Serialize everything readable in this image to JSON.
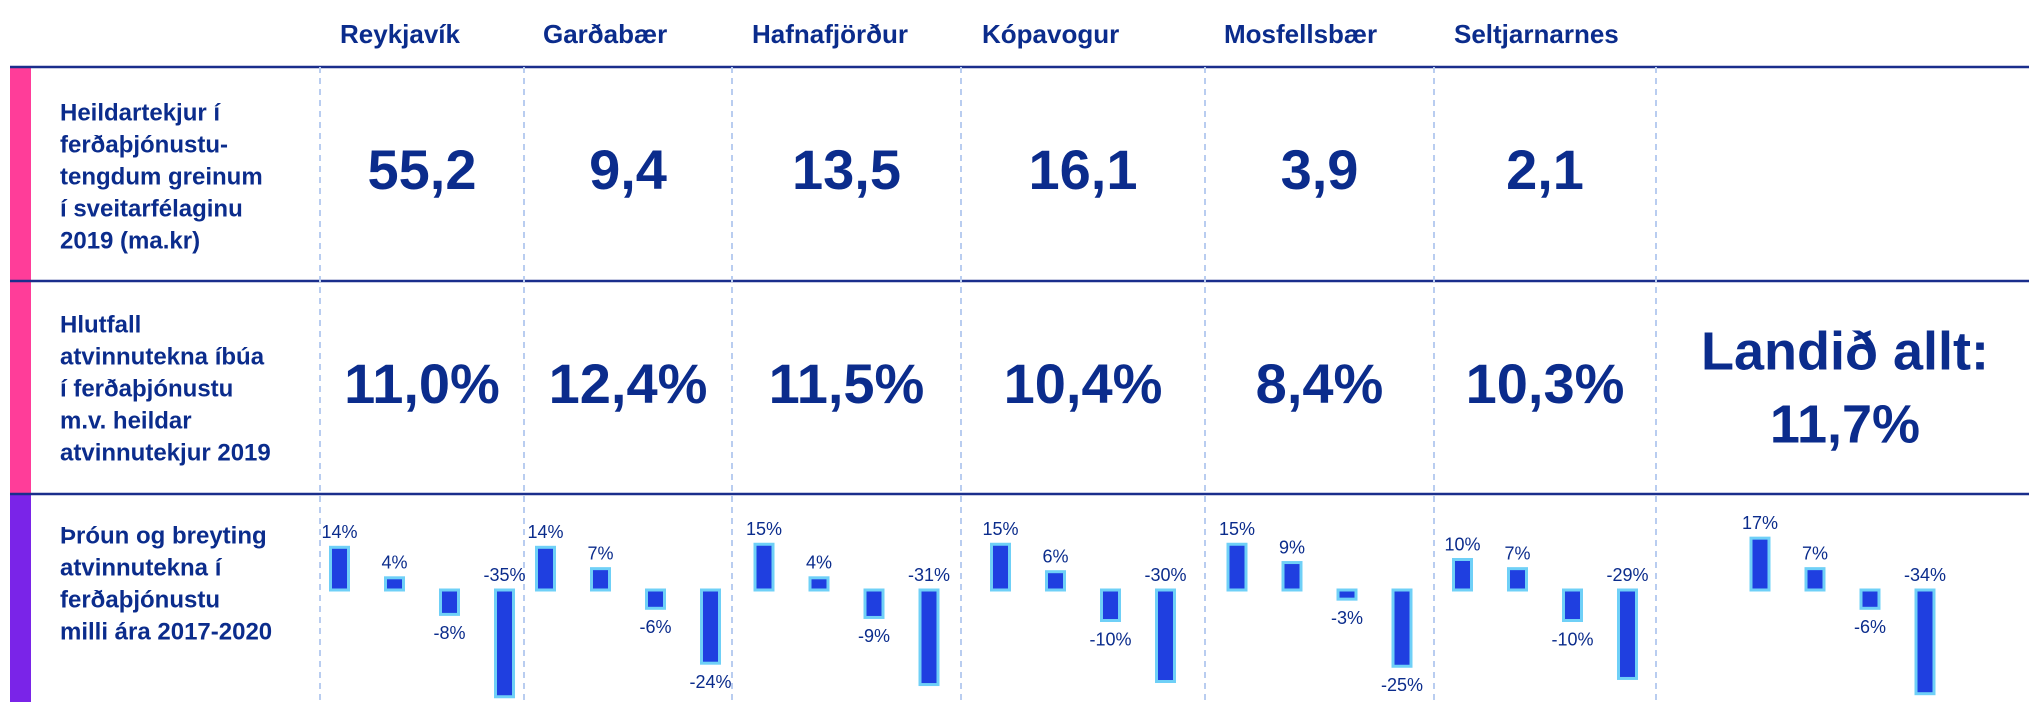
{
  "header": {
    "columns": [
      "Reykjavík",
      "Garðabær",
      "Hafnafjörður",
      "Kópavogur",
      "Mosfellsbær",
      "Seltjarnarnes"
    ]
  },
  "rows": [
    {
      "label_lines": [
        "Heildartekjur í",
        "ferðaþjónustu-",
        "tengdum greinum",
        "í sveitarfélaginu",
        "2019 (ma.kr)"
      ],
      "values": [
        "55,2",
        "9,4",
        "13,5",
        "16,1",
        "3,9",
        "2,1"
      ]
    },
    {
      "label_lines": [
        "Hlutfall",
        "atvinnutekna íbúa",
        "í ferðaþjónustu",
        "m.v. heildar",
        "atvinnutekjur 2019"
      ],
      "values": [
        "11,0%",
        "12,4%",
        "11,5%",
        "10,4%",
        "8,4%",
        "10,3%"
      ],
      "national_lines": [
        "Landið allt:",
        "11,7%"
      ]
    },
    {
      "label_lines": [
        "Þróun og breyting",
        "atvinnutekna í",
        "ferðaþjónustu",
        "milli ára 2017-2020"
      ],
      "changes": [
        {
          "values": [
            14,
            4,
            -8,
            -35
          ],
          "value_labels": [
            "14%",
            "4%",
            "-8%",
            "-35%"
          ]
        },
        {
          "values": [
            14,
            7,
            -6,
            -24
          ],
          "value_labels": [
            "14%",
            "7%",
            "-6%",
            "-24%"
          ]
        },
        {
          "values": [
            15,
            4,
            -9,
            -31
          ],
          "value_labels": [
            "15%",
            "4%",
            "-9%",
            "-31%"
          ]
        },
        {
          "values": [
            15,
            6,
            -10,
            -30
          ],
          "value_labels": [
            "15%",
            "6%",
            "-10%",
            "-30%"
          ]
        },
        {
          "values": [
            15,
            9,
            -3,
            -25
          ],
          "value_labels": [
            "15%",
            "9%",
            "-3%",
            "-25%"
          ]
        },
        {
          "values": [
            10,
            7,
            -10,
            -29
          ],
          "value_labels": [
            "10%",
            "7%",
            "-10%",
            "-29%"
          ]
        },
        {
          "values": [
            17,
            7,
            -6,
            -34
          ],
          "value_labels": [
            "17%",
            "7%",
            "-6%",
            "-34%"
          ]
        }
      ]
    }
  ]
}
